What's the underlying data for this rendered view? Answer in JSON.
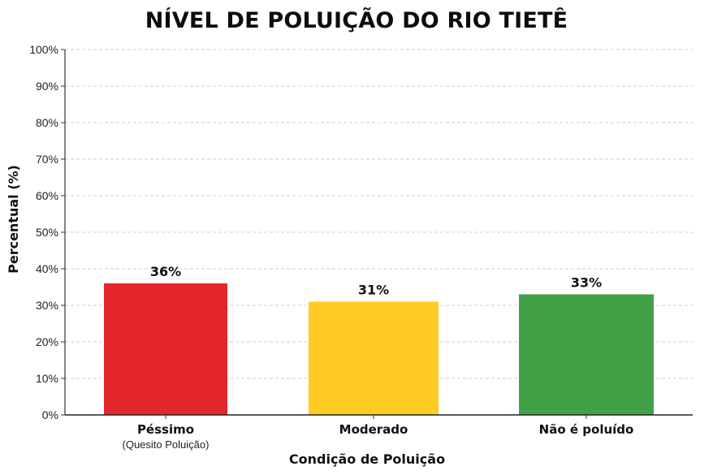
{
  "chart_data": {
    "type": "bar",
    "title": "NÍVEL DE POLUIÇÃO DO RIO TIETÊ",
    "xlabel": "Condição de Poluição",
    "ylabel": "Percentual (%)",
    "categories": [
      "Péssimo",
      "Moderado",
      "Não é poluído"
    ],
    "category_sublabels": [
      "(Quesito Poluição)",
      "",
      ""
    ],
    "values": [
      36,
      31,
      33
    ],
    "value_labels": [
      "36%",
      "31%",
      "33%"
    ],
    "colors": [
      "#e3272b",
      "#fdcb24",
      "#41a147"
    ],
    "ylim": [
      0,
      100
    ],
    "yticks": [
      0,
      10,
      20,
      30,
      40,
      50,
      60,
      70,
      80,
      90,
      100
    ],
    "ytick_labels": [
      "0%",
      "10%",
      "20%",
      "30%",
      "40%",
      "50%",
      "60%",
      "70%",
      "80%",
      "90%",
      "100%"
    ],
    "grid": true,
    "legend": "none"
  }
}
